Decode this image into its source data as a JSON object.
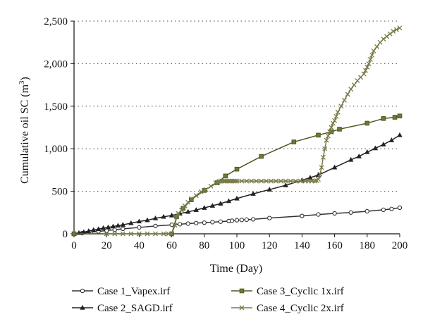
{
  "chart_data": {
    "type": "line",
    "title": "",
    "xlabel": "Time (Day)",
    "ylabel_main": "Cumulative oil SC (m",
    "ylabel_sup": "3",
    "ylabel_close": ")",
    "xlim": [
      0,
      200
    ],
    "ylim": [
      0,
      2500
    ],
    "x_ticks": [
      0,
      20,
      40,
      60,
      80,
      100,
      120,
      140,
      160,
      180,
      200
    ],
    "x_tick_labels": [
      "0",
      "20",
      "40",
      "60",
      "80",
      "100",
      "120",
      "140",
      "160",
      "180",
      "200"
    ],
    "y_ticks": [
      0,
      500,
      1000,
      1500,
      2000,
      2500
    ],
    "y_tick_labels": [
      "0",
      "500",
      "1,000",
      "1,500",
      "2,000",
      "2,500"
    ],
    "grid": "horizontal dotted",
    "legend_position": "bottom",
    "series": [
      {
        "name": "Case 1_Vapex.irf",
        "color": "#333333",
        "marker": "circle",
        "points": [
          [
            0,
            0
          ],
          [
            5,
            8
          ],
          [
            10,
            18
          ],
          [
            15,
            28
          ],
          [
            20,
            38
          ],
          [
            25,
            48
          ],
          [
            30,
            58
          ],
          [
            40,
            75
          ],
          [
            50,
            92
          ],
          [
            60,
            106
          ],
          [
            65,
            113
          ],
          [
            70,
            120
          ],
          [
            75,
            126
          ],
          [
            80,
            131
          ],
          [
            85,
            137
          ],
          [
            90,
            143
          ],
          [
            95,
            150
          ],
          [
            97,
            154
          ],
          [
            100,
            160
          ],
          [
            103,
            163
          ],
          [
            106,
            166
          ],
          [
            110,
            171
          ],
          [
            120,
            185
          ],
          [
            140,
            210
          ],
          [
            150,
            227
          ],
          [
            160,
            240
          ],
          [
            170,
            250
          ],
          [
            180,
            265
          ],
          [
            190,
            282
          ],
          [
            195,
            292
          ],
          [
            200,
            307
          ]
        ]
      },
      {
        "name": "Case 2_SAGD.irf",
        "color": "#222222",
        "marker": "triangle",
        "points": [
          [
            0,
            0
          ],
          [
            3,
            10
          ],
          [
            6,
            20
          ],
          [
            9,
            32
          ],
          [
            12,
            45
          ],
          [
            15,
            55
          ],
          [
            18,
            67
          ],
          [
            21,
            76
          ],
          [
            24,
            86
          ],
          [
            27,
            96
          ],
          [
            30,
            106
          ],
          [
            35,
            125
          ],
          [
            40,
            145
          ],
          [
            45,
            160
          ],
          [
            50,
            182
          ],
          [
            55,
            200
          ],
          [
            60,
            216
          ],
          [
            65,
            238
          ],
          [
            70,
            258
          ],
          [
            75,
            280
          ],
          [
            80,
            305
          ],
          [
            85,
            330
          ],
          [
            90,
            355
          ],
          [
            95,
            385
          ],
          [
            100,
            415
          ],
          [
            110,
            470
          ],
          [
            120,
            520
          ],
          [
            130,
            570
          ],
          [
            140,
            630
          ],
          [
            145,
            660
          ],
          [
            150,
            690
          ],
          [
            160,
            780
          ],
          [
            170,
            870
          ],
          [
            175,
            910
          ],
          [
            180,
            960
          ],
          [
            185,
            1005
          ],
          [
            190,
            1050
          ],
          [
            195,
            1100
          ],
          [
            200,
            1160
          ]
        ]
      },
      {
        "name": "Case 3_Cyclic 1x.irf",
        "color": "#4a5a22",
        "marker": "square",
        "points": [
          [
            0,
            0
          ],
          [
            60,
            0
          ],
          [
            63,
            200
          ],
          [
            67,
            300
          ],
          [
            72,
            400
          ],
          [
            80,
            510
          ],
          [
            88,
            600
          ],
          [
            93,
            680
          ],
          [
            100,
            760
          ],
          [
            115,
            910
          ],
          [
            135,
            1080
          ],
          [
            150,
            1160
          ],
          [
            158,
            1200
          ],
          [
            163,
            1230
          ],
          [
            180,
            1300
          ],
          [
            190,
            1355
          ],
          [
            197,
            1370
          ],
          [
            200,
            1385
          ]
        ]
      },
      {
        "name": "Case 4_Cyclic 2x.irf",
        "color": "#7a7a48",
        "marker": "x",
        "points": [
          [
            20,
            0
          ],
          [
            25,
            0
          ],
          [
            30,
            0
          ],
          [
            35,
            0
          ],
          [
            40,
            0
          ],
          [
            45,
            0
          ],
          [
            50,
            0
          ],
          [
            55,
            0
          ],
          [
            58,
            0
          ],
          [
            60,
            0
          ],
          [
            62,
            100
          ],
          [
            63,
            200
          ],
          [
            64,
            240
          ],
          [
            66,
            280
          ],
          [
            68,
            330
          ],
          [
            70,
            370
          ],
          [
            72,
            410
          ],
          [
            75,
            450
          ],
          [
            78,
            495
          ],
          [
            81,
            520
          ],
          [
            84,
            560
          ],
          [
            87,
            600
          ],
          [
            89,
            615
          ],
          [
            90,
            620
          ],
          [
            91,
            620
          ],
          [
            92,
            620
          ],
          [
            93,
            620
          ],
          [
            94,
            620
          ],
          [
            95,
            620
          ],
          [
            96,
            620
          ],
          [
            97,
            620
          ],
          [
            98,
            620
          ],
          [
            99,
            620
          ],
          [
            100,
            620
          ],
          [
            103,
            620
          ],
          [
            106,
            620
          ],
          [
            109,
            620
          ],
          [
            112,
            620
          ],
          [
            115,
            620
          ],
          [
            118,
            620
          ],
          [
            121,
            620
          ],
          [
            124,
            620
          ],
          [
            127,
            620
          ],
          [
            130,
            620
          ],
          [
            133,
            620
          ],
          [
            136,
            620
          ],
          [
            139,
            620
          ],
          [
            142,
            620
          ],
          [
            144,
            620
          ],
          [
            146,
            620
          ],
          [
            148,
            620
          ],
          [
            149,
            625
          ],
          [
            150,
            640
          ],
          [
            151,
            700
          ],
          [
            152,
            780
          ],
          [
            153,
            900
          ],
          [
            154,
            1000
          ],
          [
            155,
            1100
          ],
          [
            156,
            1150
          ],
          [
            157,
            1200
          ],
          [
            158,
            1250
          ],
          [
            159,
            1300
          ],
          [
            160,
            1330
          ],
          [
            161,
            1380
          ],
          [
            162,
            1430
          ],
          [
            164,
            1500
          ],
          [
            166,
            1570
          ],
          [
            168,
            1640
          ],
          [
            170,
            1700
          ],
          [
            172,
            1750
          ],
          [
            174,
            1800
          ],
          [
            176,
            1840
          ],
          [
            178,
            1880
          ],
          [
            179,
            1920
          ],
          [
            180,
            1960
          ],
          [
            181,
            2000
          ],
          [
            182,
            2050
          ],
          [
            183,
            2100
          ],
          [
            184,
            2150
          ],
          [
            186,
            2200
          ],
          [
            188,
            2250
          ],
          [
            190,
            2290
          ],
          [
            192,
            2320
          ],
          [
            194,
            2350
          ],
          [
            196,
            2380
          ],
          [
            198,
            2400
          ],
          [
            200,
            2420
          ]
        ]
      }
    ]
  }
}
